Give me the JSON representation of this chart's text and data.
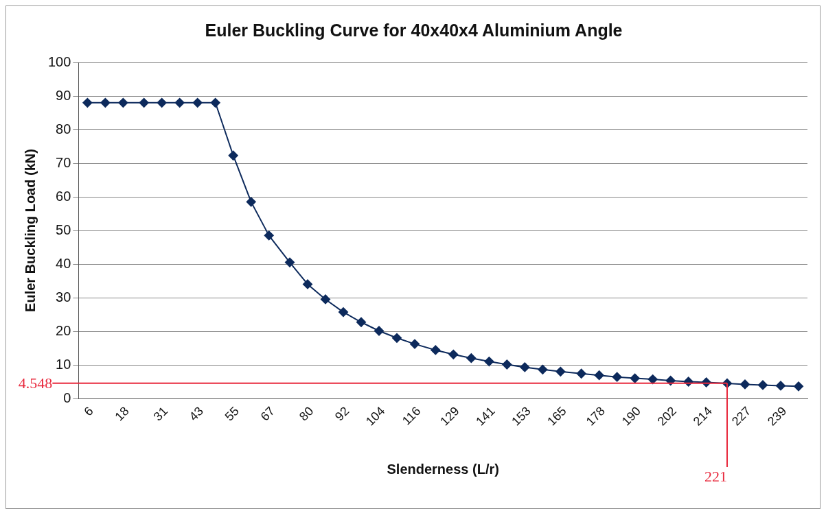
{
  "chart_data": {
    "type": "line",
    "title": "Euler Buckling Curve for 40x40x4 Aluminium Angle",
    "xlabel": "Slenderness (L/r)",
    "ylabel": "Euler Buckling Load (kN)",
    "x": [
      6,
      12,
      18,
      25,
      31,
      37,
      43,
      49,
      55,
      61,
      67,
      74,
      80,
      86,
      92,
      98,
      104,
      110,
      116,
      123,
      129,
      135,
      141,
      147,
      153,
      159,
      165,
      172,
      178,
      184,
      190,
      196,
      202,
      208,
      214,
      221,
      227,
      233,
      239,
      245
    ],
    "series": [
      {
        "color": "#0d2a5c",
        "values": [
          88,
          88,
          88,
          88,
          88,
          88,
          88,
          88,
          72.3,
          58.5,
          48.5,
          40.5,
          34,
          29.5,
          25.7,
          22.7,
          20.1,
          18,
          16.2,
          14.4,
          13.1,
          12,
          11,
          10.1,
          9.3,
          8.6,
          8,
          7.4,
          6.9,
          6.4,
          6,
          5.7,
          5.3,
          5,
          4.8,
          4.5,
          4.2,
          4,
          3.8,
          3.6
        ]
      }
    ],
    "xlim": [
      3,
      248
    ],
    "xticks": [
      6,
      18,
      31,
      43,
      55,
      67,
      80,
      92,
      104,
      116,
      129,
      141,
      153,
      165,
      178,
      190,
      202,
      214,
      227,
      239
    ],
    "ylim": [
      0,
      100
    ],
    "yticks": [
      0,
      10,
      20,
      30,
      40,
      50,
      60,
      70,
      80,
      90,
      100
    ],
    "grid": "y",
    "legend": false,
    "marker": "diamond",
    "line_style": "solid",
    "ref_lines": [
      {
        "axis": "y",
        "value": 4.548,
        "label": "4.548",
        "color": "#e8283c"
      },
      {
        "axis": "x",
        "value": 221,
        "label": "221",
        "color": "#e8283c"
      }
    ]
  }
}
